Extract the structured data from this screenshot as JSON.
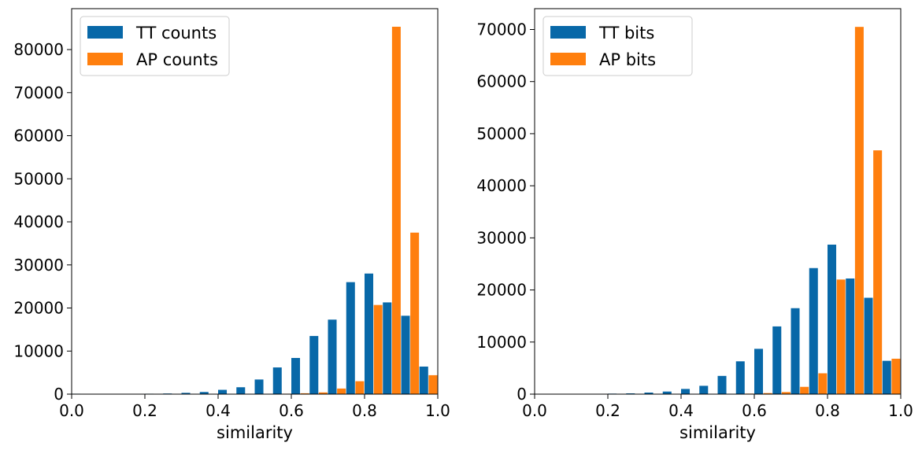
{
  "colors": {
    "tt": "#0868a8",
    "ap": "#ff7f0e"
  },
  "chart_data": [
    {
      "type": "bar",
      "title": "",
      "xlabel": "similarity",
      "ylabel": "",
      "xlim": [
        0.0,
        1.0
      ],
      "ylim": [
        0,
        89500
      ],
      "x_ticks": [
        "0.0",
        "0.2",
        "0.4",
        "0.6",
        "0.8",
        "1.0"
      ],
      "x_tick_values": [
        0.0,
        0.2,
        0.4,
        0.6,
        0.8,
        1.0
      ],
      "y_ticks": [
        "0",
        "10000",
        "20000",
        "30000",
        "40000",
        "50000",
        "60000",
        "70000",
        "80000"
      ],
      "y_tick_values": [
        0,
        10000,
        20000,
        30000,
        40000,
        50000,
        60000,
        70000,
        80000
      ],
      "bin_starts": [
        0.0,
        0.05,
        0.1,
        0.15,
        0.2,
        0.25,
        0.3,
        0.35,
        0.4,
        0.45,
        0.5,
        0.55,
        0.6,
        0.65,
        0.7,
        0.75,
        0.8,
        0.85,
        0.9,
        0.95
      ],
      "bin_width": 0.05,
      "legend_position": "top-left",
      "series": [
        {
          "name": "TT counts",
          "values": [
            100,
            0,
            0,
            0,
            100,
            150,
            300,
            500,
            1000,
            1600,
            3400,
            6200,
            8400,
            13500,
            17300,
            26000,
            28000,
            21300,
            18200,
            6400
          ]
        },
        {
          "name": "AP counts",
          "values": [
            0,
            0,
            0,
            0,
            0,
            0,
            0,
            0,
            0,
            0,
            0,
            100,
            200,
            400,
            1300,
            3000,
            20700,
            85300,
            37500,
            4400
          ]
        }
      ]
    },
    {
      "type": "bar",
      "title": "",
      "xlabel": "similarity",
      "ylabel": "",
      "xlim": [
        0.0,
        1.0
      ],
      "ylim": [
        0,
        74000
      ],
      "x_ticks": [
        "0.0",
        "0.2",
        "0.4",
        "0.6",
        "0.8",
        "1.0"
      ],
      "x_tick_values": [
        0.0,
        0.2,
        0.4,
        0.6,
        0.8,
        1.0
      ],
      "y_ticks": [
        "0",
        "10000",
        "20000",
        "30000",
        "40000",
        "50000",
        "60000",
        "70000"
      ],
      "y_tick_values": [
        0,
        10000,
        20000,
        30000,
        40000,
        50000,
        60000,
        70000
      ],
      "bin_starts": [
        0.0,
        0.05,
        0.1,
        0.15,
        0.2,
        0.25,
        0.3,
        0.35,
        0.4,
        0.45,
        0.5,
        0.55,
        0.6,
        0.65,
        0.7,
        0.75,
        0.8,
        0.85,
        0.9,
        0.95
      ],
      "bin_width": 0.05,
      "legend_position": "top-left",
      "series": [
        {
          "name": "TT bits",
          "values": [
            0,
            0,
            0,
            0,
            100,
            150,
            300,
            500,
            1000,
            1600,
            3500,
            6300,
            8700,
            13000,
            16500,
            24200,
            28700,
            22200,
            18500,
            6400
          ]
        },
        {
          "name": "AP bits",
          "values": [
            0,
            0,
            0,
            0,
            0,
            0,
            0,
            0,
            0,
            0,
            0,
            100,
            200,
            400,
            1400,
            4000,
            22000,
            70500,
            46800,
            6800
          ]
        }
      ]
    }
  ]
}
